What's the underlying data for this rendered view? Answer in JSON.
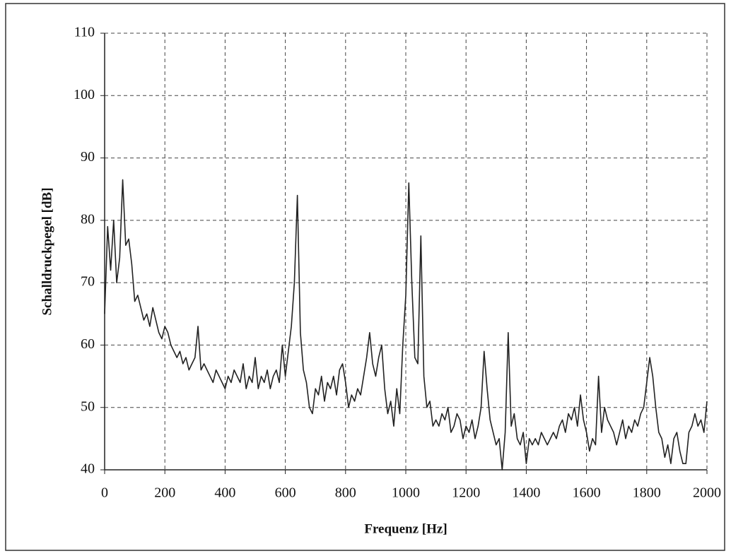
{
  "chart_data": {
    "type": "line",
    "xlabel": "Frequenz [Hz]",
    "ylabel": "Schalldruckpegel [dB]",
    "color": "#222222",
    "grid": true,
    "xlim": [
      0,
      2000
    ],
    "ylim": [
      40,
      110
    ],
    "xticks": [
      0,
      200,
      400,
      600,
      800,
      1000,
      1200,
      1400,
      1600,
      1800,
      2000
    ],
    "yticks": [
      40,
      50,
      60,
      70,
      80,
      90,
      100,
      110
    ],
    "x": [
      0,
      10,
      20,
      30,
      40,
      50,
      60,
      70,
      80,
      90,
      100,
      110,
      120,
      130,
      140,
      150,
      160,
      170,
      180,
      190,
      200,
      210,
      220,
      230,
      240,
      250,
      260,
      270,
      280,
      290,
      300,
      310,
      320,
      330,
      340,
      350,
      360,
      370,
      380,
      390,
      400,
      410,
      420,
      430,
      440,
      450,
      460,
      470,
      480,
      490,
      500,
      510,
      520,
      530,
      540,
      550,
      560,
      570,
      580,
      590,
      600,
      610,
      620,
      630,
      640,
      650,
      660,
      670,
      680,
      690,
      700,
      710,
      720,
      730,
      740,
      750,
      760,
      770,
      780,
      790,
      800,
      810,
      820,
      830,
      840,
      850,
      860,
      870,
      880,
      890,
      900,
      910,
      920,
      930,
      940,
      950,
      960,
      970,
      980,
      990,
      1000,
      1010,
      1020,
      1030,
      1040,
      1050,
      1060,
      1070,
      1080,
      1090,
      1100,
      1110,
      1120,
      1130,
      1140,
      1150,
      1160,
      1170,
      1180,
      1190,
      1200,
      1210,
      1220,
      1230,
      1240,
      1250,
      1260,
      1270,
      1280,
      1290,
      1300,
      1310,
      1320,
      1330,
      1340,
      1350,
      1360,
      1370,
      1380,
      1390,
      1400,
      1410,
      1420,
      1430,
      1440,
      1450,
      1460,
      1470,
      1480,
      1490,
      1500,
      1510,
      1520,
      1530,
      1540,
      1550,
      1560,
      1570,
      1580,
      1590,
      1600,
      1610,
      1620,
      1630,
      1640,
      1650,
      1660,
      1670,
      1680,
      1690,
      1700,
      1710,
      1720,
      1730,
      1740,
      1750,
      1760,
      1770,
      1780,
      1790,
      1800,
      1810,
      1820,
      1830,
      1840,
      1850,
      1860,
      1870,
      1880,
      1890,
      1900,
      1910,
      1920,
      1930,
      1940,
      1950,
      1960,
      1970,
      1980,
      1990,
      2000
    ],
    "values": [
      65,
      79,
      72,
      80,
      70,
      74,
      86.5,
      76,
      77,
      73,
      67,
      68,
      66,
      64,
      65,
      63,
      66,
      64,
      62,
      61,
      63,
      62,
      60,
      59,
      58,
      59,
      57,
      58,
      56,
      57,
      58,
      63,
      56,
      57,
      56,
      55,
      54,
      56,
      55,
      54,
      53,
      55,
      54,
      56,
      55,
      54,
      57,
      53,
      55,
      54,
      58,
      53,
      55,
      54,
      56,
      53,
      55,
      56,
      54,
      60,
      55,
      59,
      63,
      70,
      84,
      62,
      56,
      54,
      50,
      49,
      53,
      52,
      55,
      51,
      54,
      53,
      55,
      52,
      56,
      57,
      54,
      50,
      52,
      51,
      53,
      52,
      55,
      58,
      62,
      57,
      55,
      58,
      60,
      53,
      49,
      51,
      47,
      53,
      49,
      60,
      68,
      86,
      70,
      58,
      57,
      77.5,
      55,
      50,
      51,
      47,
      48,
      47,
      49,
      48,
      50,
      46,
      47,
      49,
      48,
      45,
      47,
      46,
      48,
      45,
      47,
      50,
      59,
      53,
      48,
      46,
      44,
      45,
      40,
      46,
      62,
      47,
      49,
      45,
      44,
      46,
      41,
      45,
      44,
      45,
      44,
      46,
      45,
      44,
      45,
      46,
      45,
      47,
      48,
      46,
      49,
      48,
      50,
      47,
      52,
      48,
      46,
      43,
      45,
      44,
      55,
      46,
      50,
      48,
      47,
      46,
      44,
      46,
      48,
      45,
      47,
      46,
      48,
      47,
      49,
      50,
      54,
      58,
      55,
      50,
      46,
      45,
      42,
      44,
      41,
      45,
      46,
      43,
      41,
      41,
      46,
      47,
      49,
      47,
      48,
      46,
      51
    ]
  }
}
